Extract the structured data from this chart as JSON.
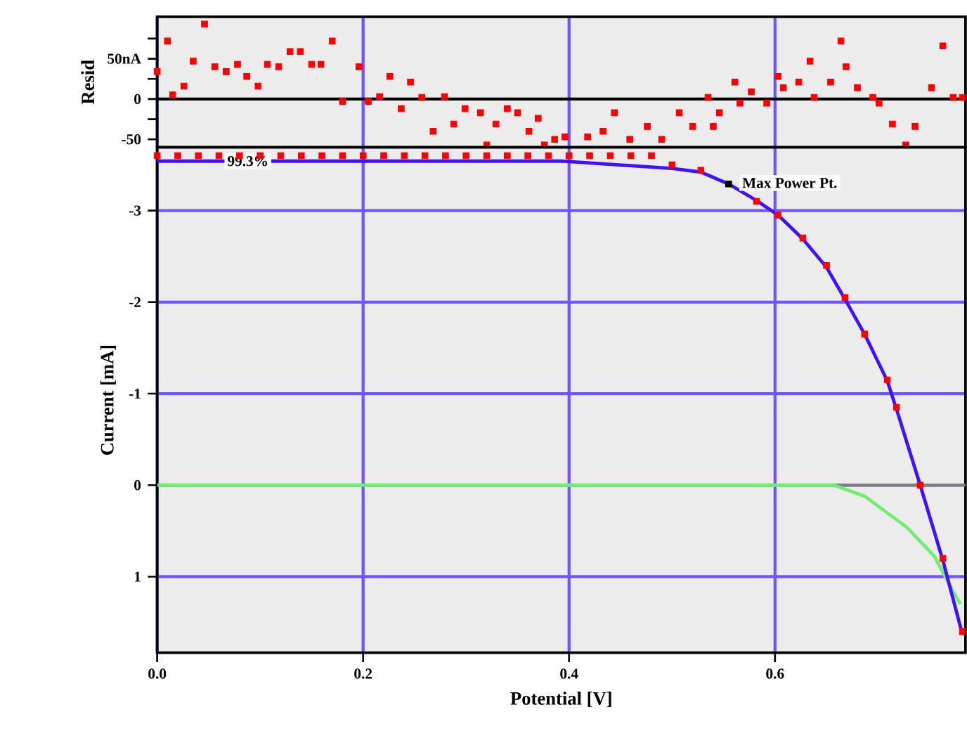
{
  "chart_data": [
    {
      "type": "scatter",
      "ylabel": "Resid",
      "xlim": [
        0,
        0.785
      ],
      "ylim": [
        -60,
        102
      ],
      "tick_labels": "y",
      "grid": "x",
      "marker": "square",
      "xticks": [
        0,
        0.2,
        0.4,
        0.6
      ],
      "yticks": [
        {
          "value": 75,
          "label": null
        },
        {
          "value": 50,
          "label": "50nA"
        },
        {
          "value": 25,
          "label": null
        },
        0,
        {
          "value": -25,
          "label": null
        },
        {
          "value": -50,
          "label": "-50"
        }
      ],
      "ref_lines": [
        {
          "axis": "y",
          "value": 0,
          "color": "#000000"
        }
      ],
      "series": [
        {
          "color": "#ff0000",
          "x": [
            0.0,
            0.01,
            0.015,
            0.026,
            0.035,
            0.046,
            0.056,
            0.067,
            0.078,
            0.087,
            0.098,
            0.107,
            0.118,
            0.129,
            0.139,
            0.15,
            0.159,
            0.17,
            0.18,
            0.196,
            0.205,
            0.216,
            0.226,
            0.237,
            0.246,
            0.257,
            0.268,
            0.279,
            0.288,
            0.299,
            0.314,
            0.32,
            0.329,
            0.34,
            0.35,
            0.361,
            0.37,
            0.376,
            0.386,
            0.396,
            0.418,
            0.433,
            0.444,
            0.459,
            0.476,
            0.49,
            0.507,
            0.52,
            0.535,
            0.54,
            0.546,
            0.561,
            0.566,
            0.577,
            0.592,
            0.603,
            0.608,
            0.623,
            0.634,
            0.638,
            0.654,
            0.664,
            0.669,
            0.68,
            0.695,
            0.701,
            0.714,
            0.727,
            0.736,
            0.752,
            0.763,
            0.773,
            0.782
          ],
          "values": [
            34,
            72,
            5,
            16,
            47,
            93,
            40,
            34,
            43,
            28,
            16,
            43,
            40,
            59,
            59,
            43,
            43,
            72,
            -3,
            40,
            -3,
            3,
            28,
            -12,
            21,
            2,
            -40,
            3,
            -31,
            -12,
            -17,
            -57,
            -31,
            -12,
            -17,
            -40,
            -24,
            -57,
            -50,
            -47,
            -47,
            -40,
            -17,
            -50,
            -34,
            -50,
            -17,
            -34,
            2,
            -34,
            -17,
            21,
            -5,
            9,
            -5,
            28,
            14,
            21,
            47,
            2,
            21,
            72,
            40,
            14,
            2,
            -5,
            -31,
            -57,
            -34,
            14,
            66,
            2,
            2
          ]
        }
      ]
    },
    {
      "type": "line",
      "xlabel": "Potential [V]",
      "ylabel": "Current [mA]",
      "xlim": [
        0,
        0.785
      ],
      "ylim": [
        1.83,
        -3.69
      ],
      "grid": true,
      "xticks": [
        {
          "value": 0,
          "label": "0.0"
        },
        0.2,
        0.4,
        0.6
      ],
      "yticks": [
        -3,
        -2,
        -1,
        0,
        1
      ],
      "ref_lines": [
        {
          "axis": "y",
          "value": 0,
          "color": "#808080"
        }
      ],
      "annotations": [
        {
          "text": "99.3%",
          "x": 0.065,
          "y": -3.54
        },
        {
          "text": "Max Power Pt.",
          "x": 0.565,
          "y": -3.3
        }
      ],
      "series": [
        {
          "type": "line",
          "color": "#70ee70",
          "x": [
            0,
            0.3,
            0.5,
            0.657,
            0.687,
            0.728,
            0.755,
            0.769,
            0.78
          ],
          "values": [
            0,
            0,
            0,
            0,
            0.12,
            0.46,
            0.78,
            1.08,
            1.3
          ]
        },
        {
          "type": "line",
          "color": "#4010ff",
          "x": [
            0,
            0.2,
            0.392,
            0.5,
            0.528,
            0.555,
            0.582,
            0.603,
            0.627,
            0.65,
            0.668,
            0.687,
            0.709,
            0.718,
            0.741,
            0.763,
            0.782
          ],
          "values": [
            -3.54,
            -3.54,
            -3.54,
            -3.46,
            -3.42,
            -3.29,
            -3.11,
            -2.95,
            -2.69,
            -2.38,
            -2.03,
            -1.65,
            -1.14,
            -0.83,
            0,
            0.82,
            1.63
          ]
        },
        {
          "type": "scatter",
          "marker": "square",
          "color": "#ff0000",
          "x": [
            0,
            0.02,
            0.04,
            0.06,
            0.08,
            0.1,
            0.12,
            0.14,
            0.16,
            0.18,
            0.2,
            0.22,
            0.24,
            0.26,
            0.28,
            0.3,
            0.32,
            0.34,
            0.36,
            0.38,
            0.4,
            0.42,
            0.44,
            0.46,
            0.48,
            0.5,
            0.528,
            0.555,
            0.582,
            0.603,
            0.627,
            0.65,
            0.668,
            0.687,
            0.709,
            0.718,
            0.741,
            0.763,
            0.782
          ],
          "values": [
            -3.6,
            -3.6,
            -3.6,
            -3.6,
            -3.6,
            -3.6,
            -3.6,
            -3.6,
            -3.6,
            -3.6,
            -3.6,
            -3.6,
            -3.6,
            -3.6,
            -3.6,
            -3.6,
            -3.6,
            -3.6,
            -3.6,
            -3.6,
            -3.6,
            -3.6,
            -3.6,
            -3.6,
            -3.6,
            -3.5,
            -3.44,
            null,
            -3.1,
            -2.95,
            -2.7,
            -2.4,
            -2.05,
            -1.65,
            -1.15,
            -0.85,
            0,
            0.8,
            1.6
          ]
        },
        {
          "type": "scatter",
          "marker": "square",
          "color": "#000000",
          "x": [
            0.555
          ],
          "values": [
            -3.29
          ]
        }
      ]
    }
  ]
}
